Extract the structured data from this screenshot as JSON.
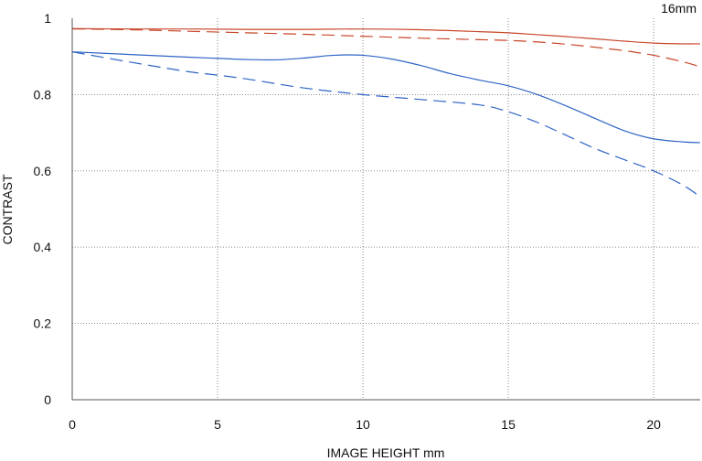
{
  "chart_data": {
    "type": "line",
    "title": "16mm",
    "xlabel": "IMAGE HEIGHT  mm",
    "ylabel": "CONTRAST",
    "xlim": [
      0,
      21.6
    ],
    "ylim": [
      0,
      1
    ],
    "xticks": [
      0,
      5,
      10,
      15,
      20
    ],
    "yticks": [
      0,
      0.2,
      0.4,
      0.6,
      0.8,
      1
    ],
    "ytick_labels": [
      "0",
      "0.2",
      "0.4",
      "0.6",
      "0.8",
      "1"
    ],
    "grid": true,
    "series": [
      {
        "color": "#c8462a",
        "dash": "solid",
        "x": [
          0,
          2,
          4,
          6,
          8,
          10,
          12,
          14,
          15,
          16,
          17,
          18,
          19,
          20,
          21,
          21.6
        ],
        "y": [
          0.973,
          0.972,
          0.972,
          0.971,
          0.971,
          0.972,
          0.97,
          0.965,
          0.962,
          0.957,
          0.952,
          0.946,
          0.94,
          0.935,
          0.933,
          0.933
        ]
      },
      {
        "color": "#c8462a",
        "dash": "dashed",
        "x": [
          0,
          2,
          4,
          6,
          8,
          10,
          12,
          14,
          15,
          16,
          17,
          18,
          19,
          20,
          21,
          21.6
        ],
        "y": [
          0.972,
          0.97,
          0.966,
          0.962,
          0.958,
          0.953,
          0.948,
          0.944,
          0.942,
          0.938,
          0.932,
          0.924,
          0.915,
          0.903,
          0.886,
          0.873
        ]
      },
      {
        "color": "#2f64c6",
        "dash": "solid",
        "x": [
          0,
          2,
          4,
          5,
          6,
          7,
          8,
          9,
          10,
          11,
          12,
          13,
          14,
          15,
          16,
          17,
          18,
          19,
          20,
          21,
          21.6
        ],
        "y": [
          0.912,
          0.905,
          0.898,
          0.895,
          0.892,
          0.891,
          0.896,
          0.903,
          0.903,
          0.893,
          0.876,
          0.855,
          0.838,
          0.823,
          0.8,
          0.77,
          0.737,
          0.705,
          0.684,
          0.676,
          0.674
        ]
      },
      {
        "color": "#2f64c6",
        "dash": "dashed",
        "x": [
          0,
          2,
          4,
          5,
          6,
          8,
          10,
          12,
          14,
          15,
          16,
          17,
          18,
          19,
          20,
          21,
          21.6
        ],
        "y": [
          0.912,
          0.885,
          0.86,
          0.851,
          0.841,
          0.817,
          0.8,
          0.787,
          0.773,
          0.755,
          0.727,
          0.693,
          0.658,
          0.629,
          0.6,
          0.563,
          0.532
        ]
      }
    ]
  }
}
